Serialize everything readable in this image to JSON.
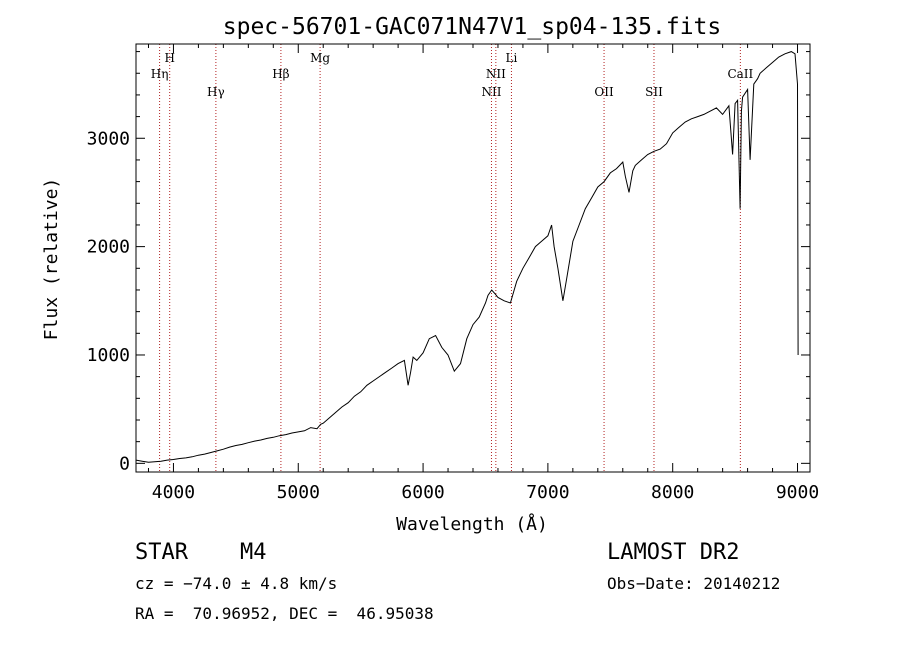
{
  "chart_data": {
    "type": "line",
    "title": "spec-56701-GAC071N47V1_sp04-135.fits",
    "xlabel": "Wavelength (Å)",
    "ylabel": "Flux (relative)",
    "xlim": [
      3700,
      9100
    ],
    "ylim": [
      -80,
      3870
    ],
    "xticks": [
      4000,
      5000,
      6000,
      7000,
      8000,
      9000
    ],
    "yticks": [
      0,
      1000,
      2000,
      3000
    ],
    "grid": false,
    "series": [
      {
        "color": "#000000",
        "x": [
          3700,
          3750,
          3800,
          3850,
          3900,
          3950,
          4000,
          4050,
          4100,
          4150,
          4200,
          4250,
          4300,
          4350,
          4400,
          4450,
          4500,
          4550,
          4600,
          4650,
          4700,
          4750,
          4800,
          4850,
          4900,
          4950,
          5000,
          5050,
          5100,
          5150,
          5180,
          5200,
          5250,
          5300,
          5350,
          5400,
          5450,
          5500,
          5550,
          5600,
          5650,
          5700,
          5750,
          5800,
          5850,
          5880,
          5900,
          5920,
          5950,
          6000,
          6050,
          6100,
          6150,
          6200,
          6250,
          6300,
          6350,
          6400,
          6450,
          6500,
          6520,
          6550,
          6580,
          6600,
          6650,
          6700,
          6750,
          6800,
          6850,
          6900,
          6950,
          7000,
          7030,
          7050,
          7080,
          7100,
          7120,
          7150,
          7200,
          7250,
          7300,
          7350,
          7400,
          7450,
          7500,
          7550,
          7600,
          7620,
          7650,
          7680,
          7700,
          7750,
          7800,
          7850,
          7900,
          7950,
          8000,
          8050,
          8100,
          8150,
          8200,
          8250,
          8300,
          8350,
          8400,
          8450,
          8480,
          8500,
          8520,
          8540,
          8550,
          8560,
          8600,
          8620,
          8650,
          8680,
          8700,
          8750,
          8800,
          8850,
          8900,
          8950,
          8980,
          9000,
          9005
        ],
        "y": [
          30,
          20,
          10,
          15,
          20,
          30,
          35,
          45,
          50,
          60,
          75,
          85,
          100,
          115,
          130,
          150,
          165,
          175,
          190,
          205,
          215,
          230,
          240,
          255,
          265,
          280,
          290,
          300,
          330,
          320,
          360,
          370,
          420,
          470,
          520,
          560,
          620,
          660,
          720,
          760,
          800,
          840,
          880,
          920,
          950,
          720,
          840,
          980,
          950,
          1020,
          1150,
          1180,
          1070,
          1000,
          850,
          920,
          1150,
          1280,
          1350,
          1480,
          1550,
          1600,
          1560,
          1530,
          1500,
          1480,
          1680,
          1800,
          1900,
          2000,
          2050,
          2100,
          2200,
          2000,
          1800,
          1650,
          1500,
          1700,
          2050,
          2200,
          2350,
          2450,
          2550,
          2600,
          2680,
          2720,
          2780,
          2650,
          2500,
          2700,
          2750,
          2800,
          2850,
          2880,
          2900,
          2950,
          3050,
          3100,
          3150,
          3180,
          3200,
          3220,
          3250,
          3280,
          3220,
          3300,
          2850,
          3320,
          3350,
          2350,
          3250,
          3380,
          3450,
          2800,
          3500,
          3550,
          3600,
          3650,
          3700,
          3750,
          3780,
          3800,
          3780,
          3500,
          1000
        ]
      }
    ],
    "annotations": [
      {
        "label": "Hη",
        "x": 3889,
        "level": "upper-mid"
      },
      {
        "label": "H",
        "x": 3970,
        "level": "top"
      },
      {
        "label": "Hγ",
        "x": 4340,
        "level": "lower"
      },
      {
        "label": "Hβ",
        "x": 4861,
        "level": "upper-mid"
      },
      {
        "label": "Mg",
        "x": 5175,
        "level": "top"
      },
      {
        "label": "NII",
        "x": 6548,
        "level": "lower"
      },
      {
        "label": "NII",
        "x": 6583,
        "level": "upper-mid"
      },
      {
        "label": "Li",
        "x": 6708,
        "level": "top"
      },
      {
        "label": "OII",
        "x": 7450,
        "level": "lower"
      },
      {
        "label": "SII",
        "x": 7850,
        "level": "lower"
      },
      {
        "label": "CaII",
        "x": 8542,
        "level": "upper-mid"
      }
    ]
  },
  "info": {
    "class_label": "STAR",
    "subclass_label": "M4",
    "survey_label": "LAMOST DR2",
    "cz_text": "cz = −74.0 ± 4.8 km/s",
    "obs_date_text": "Obs−Date: 20140212",
    "coords_text": "RA =  70.96952, DEC =  46.95038"
  }
}
